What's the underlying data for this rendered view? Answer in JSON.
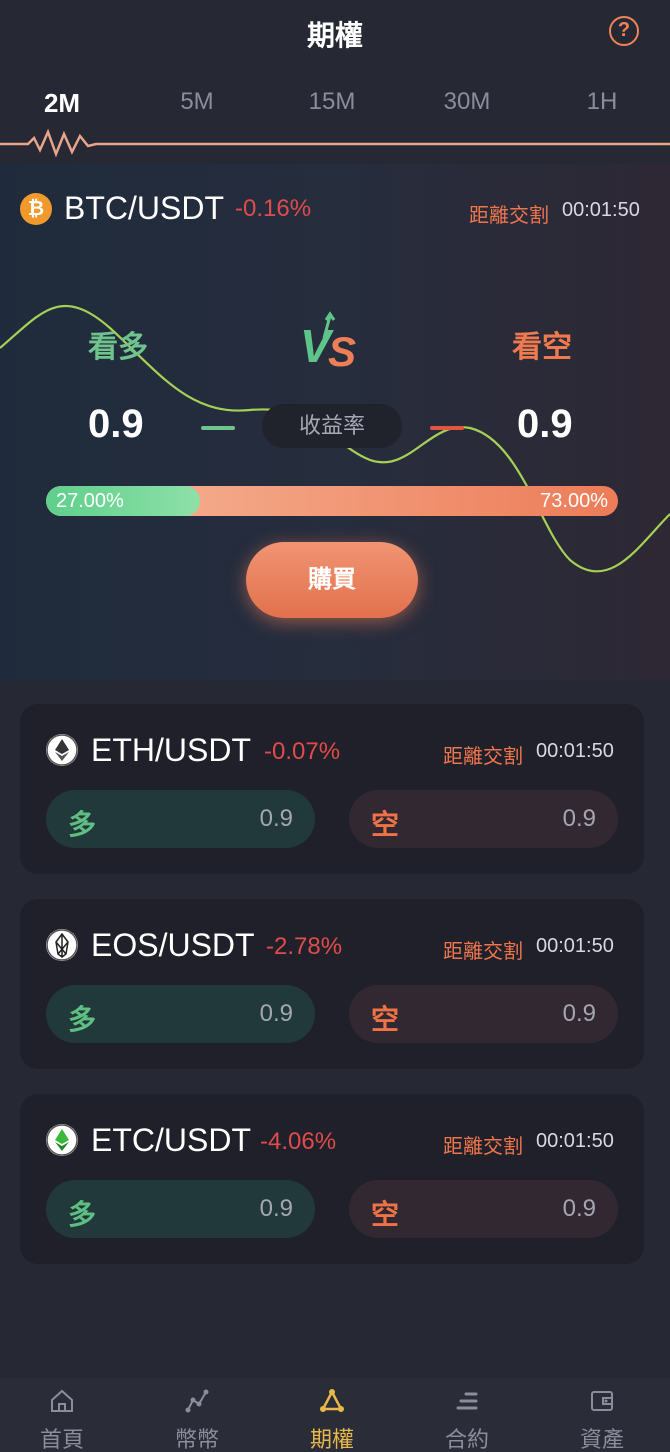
{
  "header": {
    "title": "期權",
    "help_icon": "question-circle-icon"
  },
  "period_tabs": [
    {
      "label": "2M",
      "active": true
    },
    {
      "label": "5M",
      "active": false
    },
    {
      "label": "15M",
      "active": false
    },
    {
      "label": "30M",
      "active": false
    },
    {
      "label": "1H",
      "active": false
    }
  ],
  "hero": {
    "coin_icon": "bitcoin-icon",
    "pair": "BTC/USDT",
    "change": "-0.16%",
    "countdown_label": "距離交割",
    "countdown": "00:01:50",
    "up_label": "看多",
    "down_label": "看空",
    "vs_icon": "vs-icon",
    "up_rate": "0.9",
    "down_rate": "0.9",
    "yield_label": "收益率",
    "up_ratio": 27.0,
    "down_ratio": 73.0,
    "up_ratio_text": "27.00%",
    "down_ratio_text": "73.00%",
    "buy_label": "購買"
  },
  "coins": [
    {
      "icon": "ethereum-icon",
      "pair": "ETH/USDT",
      "change": "-0.07%",
      "countdown_label": "距離交割",
      "countdown": "00:01:50",
      "long_label": "多",
      "long_rate": "0.9",
      "short_label": "空",
      "short_rate": "0.9"
    },
    {
      "icon": "eos-icon",
      "pair": "EOS/USDT",
      "change": "-2.78%",
      "countdown_label": "距離交割",
      "countdown": "00:01:50",
      "long_label": "多",
      "long_rate": "0.9",
      "short_label": "空",
      "short_rate": "0.9"
    },
    {
      "icon": "ethereum-classic-icon",
      "pair": "ETC/USDT",
      "change": "-4.06%",
      "countdown_label": "距離交割",
      "countdown": "00:01:50",
      "long_label": "多",
      "long_rate": "0.9",
      "short_label": "空",
      "short_rate": "0.9"
    }
  ],
  "bottom_nav": [
    {
      "label": "首頁",
      "icon": "home-icon",
      "active": false
    },
    {
      "label": "幣幣",
      "icon": "chart-nodes-icon",
      "active": false
    },
    {
      "label": "期權",
      "icon": "triangle-nodes-icon",
      "active": true
    },
    {
      "label": "合約",
      "icon": "bars-icon",
      "active": false
    },
    {
      "label": "資產",
      "icon": "wallet-icon",
      "active": false
    }
  ],
  "colors": {
    "accent": "#ed7c58",
    "up": "#6fc48e",
    "down": "#e04b4b",
    "nav_active": "#e8b94a"
  }
}
